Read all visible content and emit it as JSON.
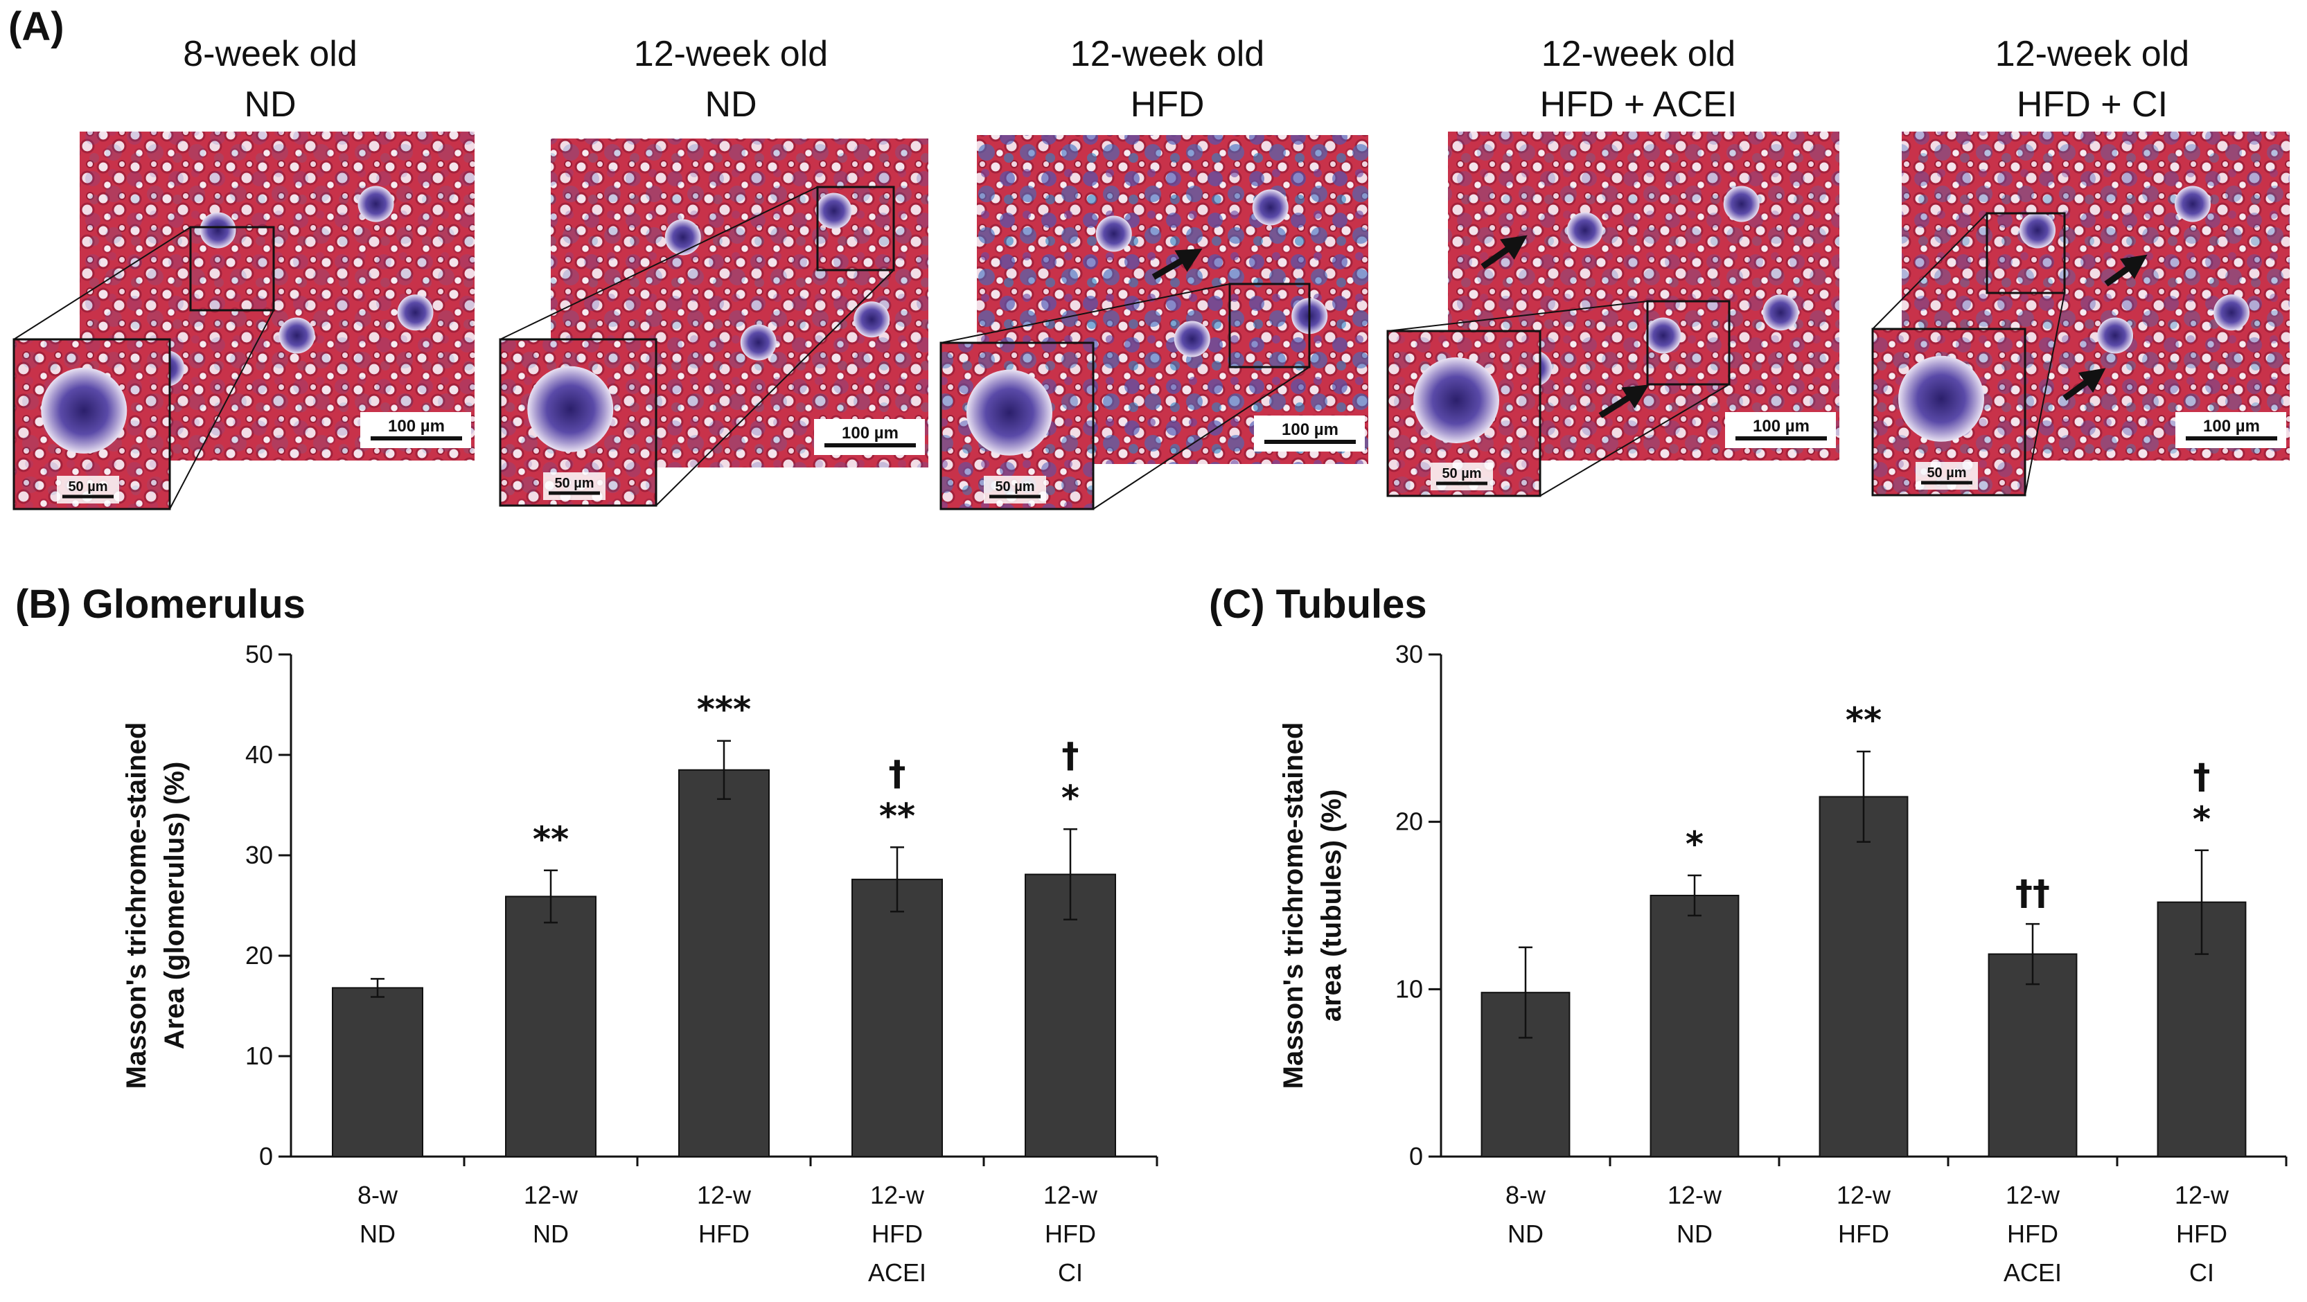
{
  "panel_a": {
    "label": "(A)",
    "groups": [
      {
        "line1": "8-week old",
        "line2": "ND",
        "scale_main": "100 µm",
        "scale_inset": "50 µm",
        "blue": 0.2
      },
      {
        "line1": "12-week old",
        "line2": "ND",
        "scale_main": "100 µm",
        "scale_inset": "50 µm",
        "blue": 0.3
      },
      {
        "line1": "12-week old",
        "line2": "HFD",
        "scale_main": "100 µm",
        "scale_inset": "50 µm",
        "blue": 0.75
      },
      {
        "line1": "12-week old",
        "line2": "HFD + ACEI",
        "scale_main": "100 µm",
        "scale_inset": "50 µm",
        "blue": 0.3
      },
      {
        "line1": "12-week old",
        "line2": "HFD + CI",
        "scale_main": "100 µm",
        "scale_inset": "50 µm",
        "blue": 0.45
      }
    ]
  },
  "chart_data": [
    {
      "type": "bar",
      "panel_label": "(B) Glomerulus",
      "ylabel_line1": "Masson's trichrome-stained",
      "ylabel_line2": "Area (glomerulus) (%)",
      "ylim": [
        0,
        50
      ],
      "yticks": [
        0,
        10,
        20,
        30,
        40,
        50
      ],
      "categories": [
        [
          "8-w",
          "ND"
        ],
        [
          "12-w",
          "ND"
        ],
        [
          "12-w",
          "HFD"
        ],
        [
          "12-w",
          "HFD",
          "ACEI"
        ],
        [
          "12-w",
          "HFD",
          "CI"
        ]
      ],
      "values": [
        16.8,
        25.9,
        38.5,
        27.6,
        28.1
      ],
      "errors": [
        0.9,
        2.6,
        2.9,
        3.2,
        4.5
      ],
      "significance": [
        [],
        [
          "**"
        ],
        [
          "***"
        ],
        [
          "†",
          "**"
        ],
        [
          "†",
          "*"
        ]
      ]
    },
    {
      "type": "bar",
      "panel_label": "(C) Tubules",
      "ylabel_line1": "Masson's trichrome-stained",
      "ylabel_line2": "area (tubules) (%)",
      "ylim": [
        0,
        30
      ],
      "yticks": [
        0,
        10,
        20,
        30
      ],
      "categories": [
        [
          "8-w",
          "ND"
        ],
        [
          "12-w",
          "ND"
        ],
        [
          "12-w",
          "HFD"
        ],
        [
          "12-w",
          "HFD",
          "ACEI"
        ],
        [
          "12-w",
          "HFD",
          "CI"
        ]
      ],
      "values": [
        9.8,
        15.6,
        21.5,
        12.1,
        15.2
      ],
      "errors": [
        2.7,
        1.2,
        2.7,
        1.8,
        3.1
      ],
      "significance": [
        [],
        [
          "*"
        ],
        [
          "**"
        ],
        [
          "††"
        ],
        [
          "†",
          "*"
        ]
      ]
    }
  ]
}
